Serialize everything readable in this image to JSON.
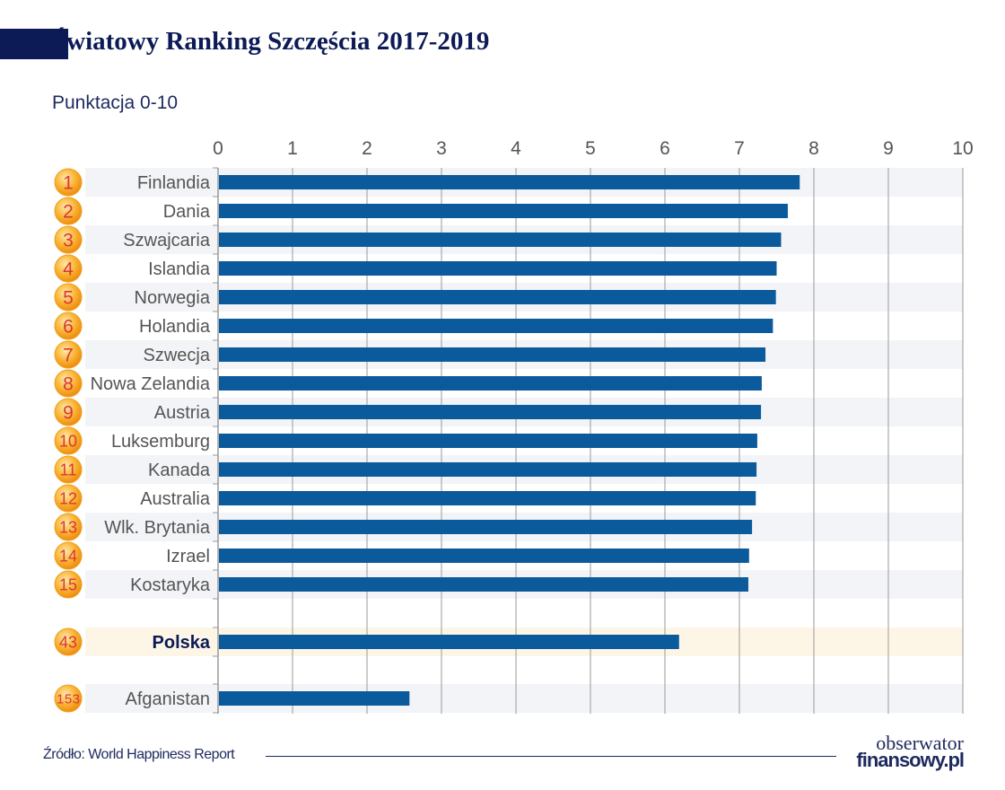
{
  "title": "Światowy Ranking Szczęścia 2017-2019",
  "source": "Źródło: World Happiness Report",
  "logo": {
    "line1": "obserwator",
    "line2": "finansowy.pl"
  },
  "colors": {
    "bar": "#0a5a9c",
    "title": "#0c1a55",
    "badge": "#f7a21b",
    "rank_text": "#d9363e",
    "highlight_row": "#fdf6e6",
    "stripe_row": "#f3f4f7"
  },
  "chart_data": {
    "type": "bar",
    "orientation": "horizontal",
    "title": "Światowy Ranking Szczęścia 2017-2019",
    "xlabel": "Punktacja 0-10",
    "xlim": [
      0,
      10
    ],
    "xticks": [
      "0",
      "1",
      "2",
      "3",
      "4",
      "5",
      "6",
      "7",
      "8",
      "9",
      "10"
    ],
    "grid": true,
    "rows": [
      {
        "rank": "1",
        "country": "Finlandia",
        "value": 7.81
      },
      {
        "rank": "2",
        "country": "Dania",
        "value": 7.65
      },
      {
        "rank": "3",
        "country": "Szwajcaria",
        "value": 7.56
      },
      {
        "rank": "4",
        "country": "Islandia",
        "value": 7.5
      },
      {
        "rank": "5",
        "country": "Norwegia",
        "value": 7.49
      },
      {
        "rank": "6",
        "country": "Holandia",
        "value": 7.45
      },
      {
        "rank": "7",
        "country": "Szwecja",
        "value": 7.35
      },
      {
        "rank": "8",
        "country": "Nowa Zelandia",
        "value": 7.3
      },
      {
        "rank": "9",
        "country": "Austria",
        "value": 7.29
      },
      {
        "rank": "10",
        "country": "Luksemburg",
        "value": 7.24
      },
      {
        "rank": "11",
        "country": "Kanada",
        "value": 7.23
      },
      {
        "rank": "12",
        "country": "Australia",
        "value": 7.22
      },
      {
        "rank": "13",
        "country": "Wlk. Brytania",
        "value": 7.17
      },
      {
        "rank": "14",
        "country": "Izrael",
        "value": 7.13
      },
      {
        "rank": "15",
        "country": "Kostaryka",
        "value": 7.12
      },
      {
        "rank": "43",
        "country": "Polska",
        "value": 6.19,
        "highlight": true
      },
      {
        "rank": "153",
        "country": "Afganistan",
        "value": 2.57
      }
    ]
  }
}
